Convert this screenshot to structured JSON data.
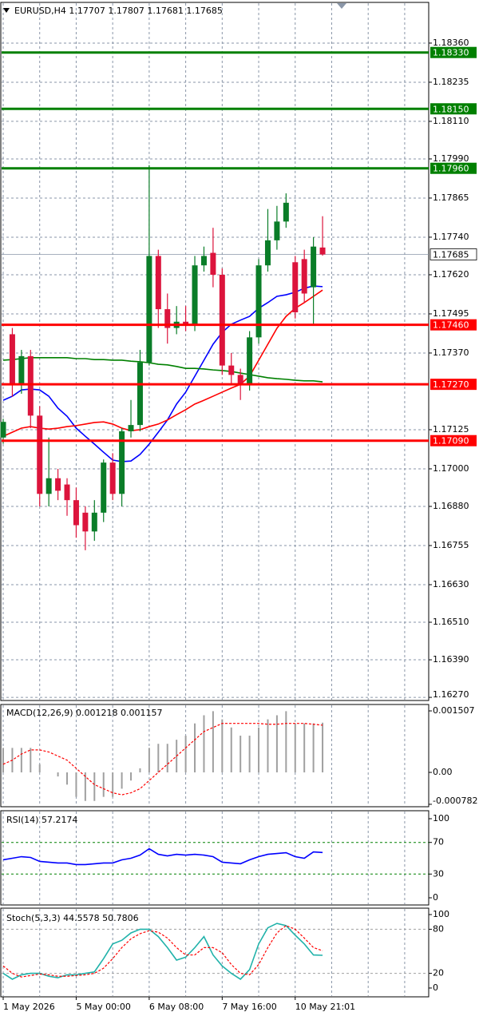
{
  "chart_data": [
    {
      "type": "candlestick",
      "title": "EURUSD,H4  1.17707 1.17807 1.17681 1.17685",
      "categories": [
        "1 May 2026",
        null,
        null,
        null,
        null,
        null,
        null,
        null,
        "5 May 00:00",
        null,
        null,
        null,
        null,
        null,
        null,
        null,
        "6 May 08:00",
        null,
        null,
        null,
        null,
        null,
        null,
        null,
        "7 May 16:00",
        null,
        null,
        null,
        null,
        null,
        null,
        null,
        "10 May 21:01",
        null,
        null,
        null
      ],
      "open": [
        1.171,
        1.1743,
        1.1727,
        1.1736,
        1.1717,
        1.1692,
        1.1697,
        1.1695,
        1.169,
        1.1686,
        1.168,
        1.1686,
        1.1702,
        1.1692,
        1.1712,
        1.1714,
        1.1734,
        1.1768,
        1.1751,
        1.1745,
        1.1747,
        1.1746,
        1.1765,
        1.1769,
        1.1762,
        1.1733,
        1.173,
        1.1727,
        1.1742,
        1.1765,
        1.1773,
        1.1779,
        1.1766,
        1.1767,
        1.1758,
        1.17707
      ],
      "high": [
        1.1716,
        1.1745,
        1.1738,
        1.1738,
        1.172,
        1.171,
        1.17,
        1.1697,
        1.1694,
        1.1688,
        1.169,
        1.1703,
        1.1705,
        1.1713,
        1.1722,
        1.1738,
        1.1797,
        1.177,
        1.1756,
        1.1752,
        1.1752,
        1.1768,
        1.1771,
        1.1777,
        1.1764,
        1.1737,
        1.1732,
        1.1744,
        1.1767,
        1.1783,
        1.1784,
        1.1788,
        1.1768,
        1.177,
        1.1774,
        1.17807
      ],
      "low": [
        1.1708,
        1.1723,
        1.1724,
        1.1713,
        1.1688,
        1.1688,
        1.169,
        1.1685,
        1.1678,
        1.1674,
        1.1677,
        1.1683,
        1.169,
        1.1688,
        1.171,
        1.1712,
        1.1733,
        1.1745,
        1.174,
        1.1743,
        1.1744,
        1.1744,
        1.1763,
        1.1758,
        1.173,
        1.1727,
        1.1722,
        1.1725,
        1.174,
        1.1763,
        1.177,
        1.1777,
        1.1748,
        1.1753,
        1.1746,
        1.17681
      ],
      "close": [
        1.1715,
        1.1727,
        1.1736,
        1.1717,
        1.1692,
        1.1697,
        1.1693,
        1.169,
        1.1682,
        1.168,
        1.1686,
        1.1702,
        1.1692,
        1.1712,
        1.1714,
        1.1734,
        1.1768,
        1.1751,
        1.1745,
        1.1747,
        1.1746,
        1.1765,
        1.1768,
        1.1762,
        1.1733,
        1.173,
        1.1727,
        1.1742,
        1.1765,
        1.1773,
        1.1779,
        1.1785,
        1.175,
        1.1756,
        1.1771,
        1.17685
      ],
      "up_color": "#0a7d28",
      "down_color": "#dc143c",
      "series": [
        {
          "color": "#0000ff",
          "values": [
            1.17219,
            1.17232,
            1.17252,
            1.17255,
            1.17252,
            1.17232,
            1.17194,
            1.17168,
            1.1713,
            1.17104,
            1.17079,
            1.17053,
            1.17028,
            1.17023,
            1.17025,
            1.17046,
            1.17079,
            1.17117,
            1.17156,
            1.17207,
            1.17245,
            1.17296,
            1.17347,
            1.17398,
            1.17436,
            1.17462,
            1.17475,
            1.17487,
            1.17513,
            1.17531,
            1.17551,
            1.17556,
            1.17564,
            1.17577,
            1.17584,
            1.17582
          ]
        },
        {
          "color": "#ff0000",
          "values": [
            1.17104,
            1.17117,
            1.1713,
            1.17135,
            1.1713,
            1.17127,
            1.1713,
            1.17135,
            1.17138,
            1.17143,
            1.17148,
            1.1715,
            1.17143,
            1.1713,
            1.17122,
            1.17125,
            1.17135,
            1.17143,
            1.17156,
            1.17173,
            1.17189,
            1.17207,
            1.17219,
            1.17232,
            1.17245,
            1.17258,
            1.1727,
            1.17296,
            1.17347,
            1.17398,
            1.17449,
            1.17487,
            1.17513,
            1.17531,
            1.17551,
            1.17571
          ]
        },
        {
          "color": "#008000",
          "values": [
            1.17347,
            1.17349,
            1.17352,
            1.17355,
            1.17355,
            1.17355,
            1.17355,
            1.17355,
            1.17352,
            1.17352,
            1.17349,
            1.17349,
            1.17347,
            1.17347,
            1.17344,
            1.17342,
            1.17339,
            1.17334,
            1.17332,
            1.17327,
            1.17321,
            1.17321,
            1.17319,
            1.17316,
            1.17314,
            1.17311,
            1.17306,
            1.17301,
            1.17296,
            1.17291,
            1.17288,
            1.17286,
            1.17283,
            1.17281,
            1.17281,
            1.17278
          ]
        }
      ],
      "levels": [
        {
          "value": 1.1833,
          "label": "1.18330",
          "color": "#008000"
        },
        {
          "value": 1.1815,
          "label": "1.18150",
          "color": "#008000"
        },
        {
          "value": 1.1796,
          "label": "1.17960",
          "color": "#008000"
        },
        {
          "value": 1.1746,
          "label": "1.17460",
          "color": "#ff0000"
        },
        {
          "value": 1.1727,
          "label": "1.17270",
          "color": "#ff0000"
        },
        {
          "value": 1.1709,
          "label": "1.17090",
          "color": "#ff0000"
        }
      ],
      "current_price": 1.17685,
      "ylim": [
        1.1626,
        1.1849
      ],
      "yticks": [
        {
          "value": 1.1836,
          "label": "1.18360"
        },
        1.18235,
        {
          "value": 1.1811,
          "label": "1.18110"
        },
        {
          "value": 1.1799,
          "label": "1.17990"
        },
        1.17865,
        {
          "value": 1.1774,
          "label": "1.17740"
        },
        {
          "value": 1.1762,
          "label": "1.17620"
        },
        1.17495,
        {
          "value": 1.1737,
          "label": "1.17370"
        },
        1.17125,
        {
          "value": 1.17,
          "label": "1.17000"
        },
        {
          "value": 1.1688,
          "label": "1.16880"
        },
        1.16755,
        {
          "value": 1.1663,
          "label": "1.16630"
        },
        {
          "value": 1.1651,
          "label": "1.16510"
        },
        {
          "value": 1.1639,
          "label": "1.16390"
        },
        {
          "value": 1.1627,
          "label": "1.16270"
        }
      ],
      "grid": true
    },
    {
      "type": "macd",
      "title": "MACD(12,26,9) 0.001218 0.001157",
      "series": [
        {
          "kind": "histogram",
          "color": "#a0a0a0",
          "values": [
            0.0006,
            0.0006,
            0.0006,
            0.0006,
            0.0002,
            0.0,
            -0.0001,
            -0.0003,
            -0.0006,
            -0.0007,
            -0.0007,
            -0.0006,
            -0.0006,
            -0.0004,
            -0.0002,
            0.0001,
            0.0006,
            0.0007,
            0.0007,
            0.0008,
            0.0009,
            0.0012,
            0.0014,
            0.0015,
            0.0013,
            0.0011,
            0.0009,
            0.0009,
            0.0011,
            0.0013,
            0.0014,
            0.0015,
            0.0012,
            0.0012,
            0.0012,
            0.001218
          ]
        },
        {
          "kind": "line",
          "dashed": true,
          "color": "#ff0000",
          "values": [
            0.0002,
            0.0003,
            0.00045,
            0.00055,
            0.00055,
            0.0005,
            0.0004,
            0.0003,
            0.0001,
            -0.0001,
            -0.0003,
            -0.0004,
            -0.0005,
            -0.00055,
            -0.0005,
            -0.0004,
            -0.0002,
            0.0,
            0.0002,
            0.0004,
            0.0006,
            0.0008,
            0.001,
            0.0011,
            0.0012,
            0.0012,
            0.0012,
            0.0012,
            0.0012,
            0.00118,
            0.00118,
            0.0012,
            0.0012,
            0.0012,
            0.00118,
            0.001157
          ]
        }
      ],
      "ylim": [
        -0.000842,
        0.001664
      ],
      "yticks": [
        0.001507,
        {
          "value": 0,
          "label": "0.00"
        },
        -0.000782
      ]
    },
    {
      "type": "oscillator",
      "title": "RSI(14) 57.2174",
      "series": [
        {
          "kind": "line",
          "color": "#0000ff",
          "values": [
            48,
            50,
            52,
            51,
            46,
            45,
            44,
            44,
            42,
            42,
            43,
            44,
            44,
            48,
            50,
            54,
            62,
            55,
            53,
            55,
            54,
            55,
            54,
            52,
            45,
            44,
            43,
            48,
            52,
            55,
            56,
            57,
            52,
            50,
            58,
            57.2174
          ]
        }
      ],
      "levels": [
        70,
        30
      ],
      "level_color": "#008000",
      "ylim": [
        -9.1,
        110.1
      ],
      "yticks": [
        100,
        70,
        30,
        0
      ]
    },
    {
      "type": "oscillator",
      "title": "Stoch(5,3,3) 44.5578 50.7806",
      "series": [
        {
          "kind": "line",
          "color": "#20b2aa",
          "values": [
            20,
            12,
            18,
            20,
            20,
            16,
            14,
            18,
            18,
            20,
            22,
            40,
            60,
            65,
            75,
            80,
            80,
            70,
            55,
            38,
            42,
            55,
            70,
            45,
            30,
            20,
            12,
            25,
            60,
            82,
            88,
            85,
            72,
            60,
            45,
            44.5578
          ]
        },
        {
          "kind": "line",
          "dashed": true,
          "color": "#ff0000",
          "values": [
            30,
            20,
            15,
            17,
            19,
            18,
            16,
            16,
            17,
            18,
            20,
            27,
            40,
            55,
            67,
            74,
            78,
            76,
            68,
            55,
            45,
            45,
            55,
            55,
            48,
            32,
            20,
            18,
            32,
            55,
            75,
            85,
            80,
            68,
            55,
            50.7806
          ]
        }
      ],
      "levels": [
        80,
        20
      ],
      "level_color": "#a0a0a0",
      "ylim": [
        -12,
        108.7
      ],
      "yticks": [
        100,
        80,
        20,
        0
      ]
    }
  ]
}
